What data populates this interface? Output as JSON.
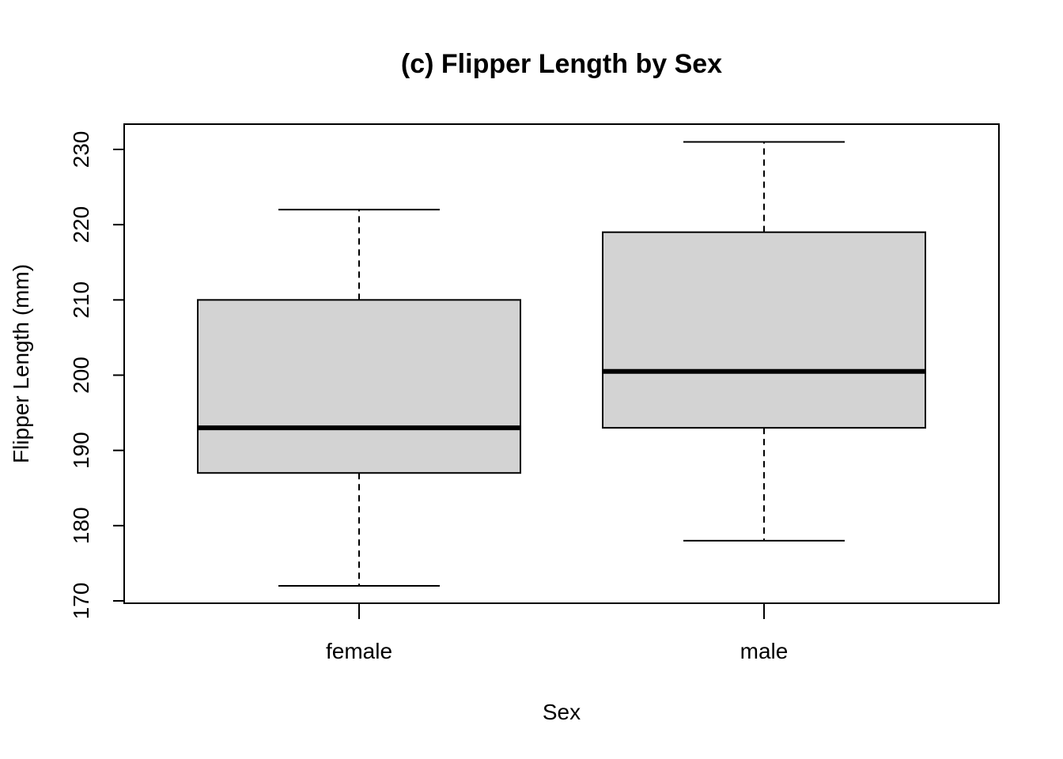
{
  "chart_data": {
    "type": "boxplot",
    "title": "(c) Flipper Length by Sex",
    "xlabel": "Sex",
    "ylabel": "Flipper Length (mm)",
    "ylim": [
      170,
      233
    ],
    "y_ticks": [
      170,
      180,
      190,
      200,
      210,
      220,
      230
    ],
    "categories": [
      "female",
      "male"
    ],
    "boxes": [
      {
        "category": "female",
        "min": 172,
        "q1": 187,
        "median": 193,
        "q3": 210,
        "max": 222
      },
      {
        "category": "male",
        "min": 178,
        "q1": 193,
        "median": 200.5,
        "q3": 219,
        "max": 231
      }
    ],
    "box_fill": "#d3d3d3",
    "grid": false
  }
}
